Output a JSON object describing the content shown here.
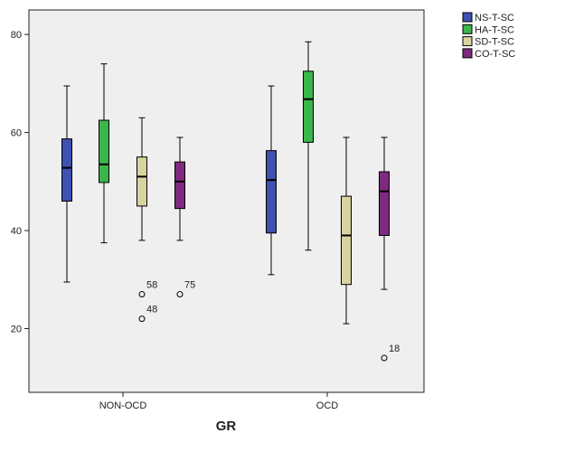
{
  "chart_data": {
    "type": "box",
    "xlabel": "GR",
    "ylabel": "",
    "ylim": [
      7,
      85
    ],
    "yticks": [
      20,
      40,
      60,
      80
    ],
    "grid": false,
    "legend_position": "top-right (outside plot)",
    "plot_background": "#efefef",
    "groups": [
      "NON-OCD",
      "OCD"
    ],
    "series": [
      {
        "name": "NS-T-SC",
        "color": "#3f51b1",
        "boxes": [
          {
            "whisker_low": 29.5,
            "q1": 46,
            "median": 52.8,
            "q3": 58.7,
            "whisker_high": 69.5
          },
          {
            "whisker_low": 31,
            "q1": 39.5,
            "median": 50.3,
            "q3": 56.3,
            "whisker_high": 69.5
          }
        ]
      },
      {
        "name": "HA-T-SC",
        "color": "#3cb54a",
        "boxes": [
          {
            "whisker_low": 37.5,
            "q1": 49.8,
            "median": 53.5,
            "q3": 62.5,
            "whisker_high": 74
          },
          {
            "whisker_low": 36,
            "q1": 58,
            "median": 66.8,
            "q3": 72.5,
            "whisker_high": 78.5
          }
        ]
      },
      {
        "name": "SD-T-SC",
        "color": "#d9d3a0",
        "boxes": [
          {
            "whisker_low": 38,
            "q1": 45,
            "median": 51,
            "q3": 55,
            "whisker_high": 63,
            "outliers": [
              {
                "value": 27,
                "label": "58"
              },
              {
                "value": 22,
                "label": "48"
              }
            ]
          },
          {
            "whisker_low": 21,
            "q1": 29,
            "median": 39,
            "q3": 47,
            "whisker_high": 59
          }
        ]
      },
      {
        "name": "CO-T-SC",
        "color": "#7e2a7e",
        "boxes": [
          {
            "whisker_low": 38,
            "q1": 44.5,
            "median": 50,
            "q3": 54,
            "whisker_high": 59,
            "outliers": [
              {
                "value": 27,
                "label": "75"
              }
            ]
          },
          {
            "whisker_low": 28,
            "q1": 39,
            "median": 48,
            "q3": 52,
            "whisker_high": 59,
            "outliers": [
              {
                "value": 14,
                "label": "18"
              }
            ]
          }
        ]
      }
    ]
  }
}
